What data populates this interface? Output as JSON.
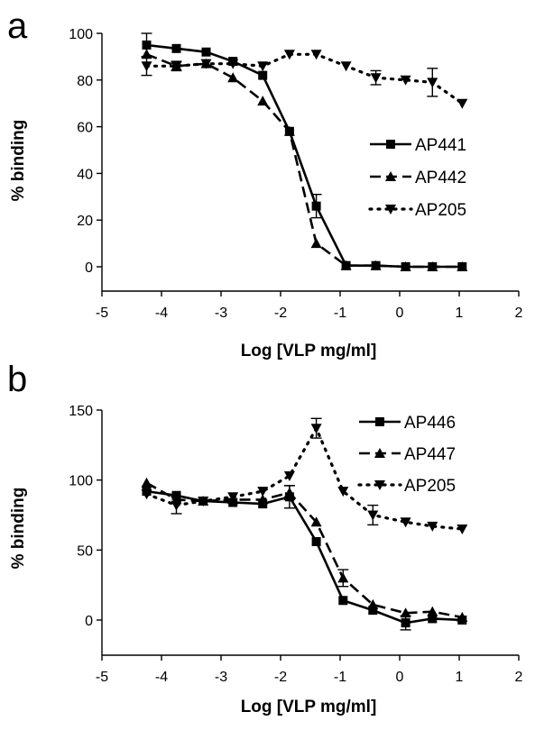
{
  "chart_data": [
    {
      "type": "line",
      "panel_label": "a",
      "xlabel": "Log [VLP mg/ml]",
      "ylabel": "% binding",
      "xlim": [
        -5,
        2
      ],
      "ylim": [
        -10,
        100
      ],
      "xticks": [
        -5,
        -4,
        -3,
        -2,
        -1,
        0,
        1,
        2
      ],
      "yticks": [
        0,
        20,
        40,
        60,
        80,
        100
      ],
      "legend_position": "right",
      "series": [
        {
          "name": "AP441",
          "style": "solid",
          "marker": "square",
          "x": [
            -4.25,
            -3.75,
            -3.25,
            -2.8,
            -2.3,
            -1.85,
            -1.4,
            -0.9,
            -0.4,
            0.1,
            0.55,
            1.05
          ],
          "y": [
            95,
            93.5,
            92,
            88,
            82,
            58,
            26,
            0.5,
            0.5,
            0,
            0,
            0
          ],
          "err": [
            5,
            0,
            0,
            0,
            0,
            0,
            5,
            0,
            0,
            0,
            0,
            0
          ]
        },
        {
          "name": "AP442",
          "style": "dashed",
          "marker": "triangle-up",
          "x": [
            -4.25,
            -3.75,
            -3.25,
            -2.8,
            -2.3,
            -1.85,
            -1.4,
            -0.9,
            -0.4,
            0.1,
            0.55,
            1.05
          ],
          "y": [
            91,
            86,
            87,
            81,
            71,
            58,
            10,
            0.5,
            0.5,
            0,
            0,
            0
          ],
          "err": [
            0,
            0,
            0,
            0,
            0,
            0,
            0,
            0,
            0,
            0,
            0,
            0
          ]
        },
        {
          "name": "AP205",
          "style": "dotted",
          "marker": "triangle-down",
          "x": [
            -4.25,
            -3.75,
            -3.25,
            -2.8,
            -2.3,
            -1.85,
            -1.4,
            -0.9,
            -0.4,
            0.1,
            0.55,
            1.05
          ],
          "y": [
            86,
            86,
            87,
            87,
            86,
            91,
            91,
            86,
            81,
            80,
            79,
            70
          ],
          "err": [
            4,
            2,
            0,
            0,
            0,
            0,
            0,
            0,
            3,
            0,
            6,
            0
          ]
        }
      ]
    },
    {
      "type": "line",
      "panel_label": "b",
      "xlabel": "Log [VLP mg/ml]",
      "ylabel": "% binding",
      "xlim": [
        -5,
        2
      ],
      "ylim": [
        -25,
        175
      ],
      "xticks": [
        -5,
        -4,
        -3,
        -2,
        -1,
        0,
        1,
        2
      ],
      "yticks": [
        0,
        50,
        100,
        150
      ],
      "legend_position": "top-right",
      "series": [
        {
          "name": "AP446",
          "style": "solid",
          "marker": "square",
          "x": [
            -4.25,
            -3.75,
            -3.3,
            -2.8,
            -2.3,
            -1.85,
            -1.4,
            -0.95,
            -0.45,
            0.1,
            0.55,
            1.05
          ],
          "y": [
            92,
            89,
            85,
            84,
            83,
            88,
            56,
            14,
            7,
            -2,
            1,
            0
          ],
          "err": [
            0,
            0,
            0,
            0,
            0,
            8,
            0,
            0,
            0,
            5,
            0,
            0
          ]
        },
        {
          "name": "AP447",
          "style": "dashed",
          "marker": "triangle-up",
          "x": [
            -4.25,
            -3.75,
            -3.3,
            -2.8,
            -2.3,
            -1.85,
            -1.4,
            -0.95,
            -0.45,
            0.1,
            0.55,
            1.05
          ],
          "y": [
            98,
            86,
            85,
            86,
            86,
            91,
            70,
            30,
            11,
            5,
            6,
            2
          ],
          "err": [
            0,
            0,
            0,
            0,
            0,
            5,
            0,
            6,
            0,
            0,
            0,
            0
          ]
        },
        {
          "name": "AP205",
          "style": "dotted",
          "marker": "triangle-down",
          "x": [
            -4.25,
            -3.75,
            -3.3,
            -2.8,
            -2.3,
            -1.85,
            -1.4,
            -0.95,
            -0.45,
            0.1,
            0.55,
            1.05
          ],
          "y": [
            90,
            82,
            85,
            88,
            92,
            103,
            137,
            92,
            75,
            70,
            67,
            65
          ],
          "err": [
            0,
            6,
            0,
            0,
            0,
            0,
            7,
            0,
            7,
            0,
            0,
            0
          ]
        }
      ]
    }
  ]
}
